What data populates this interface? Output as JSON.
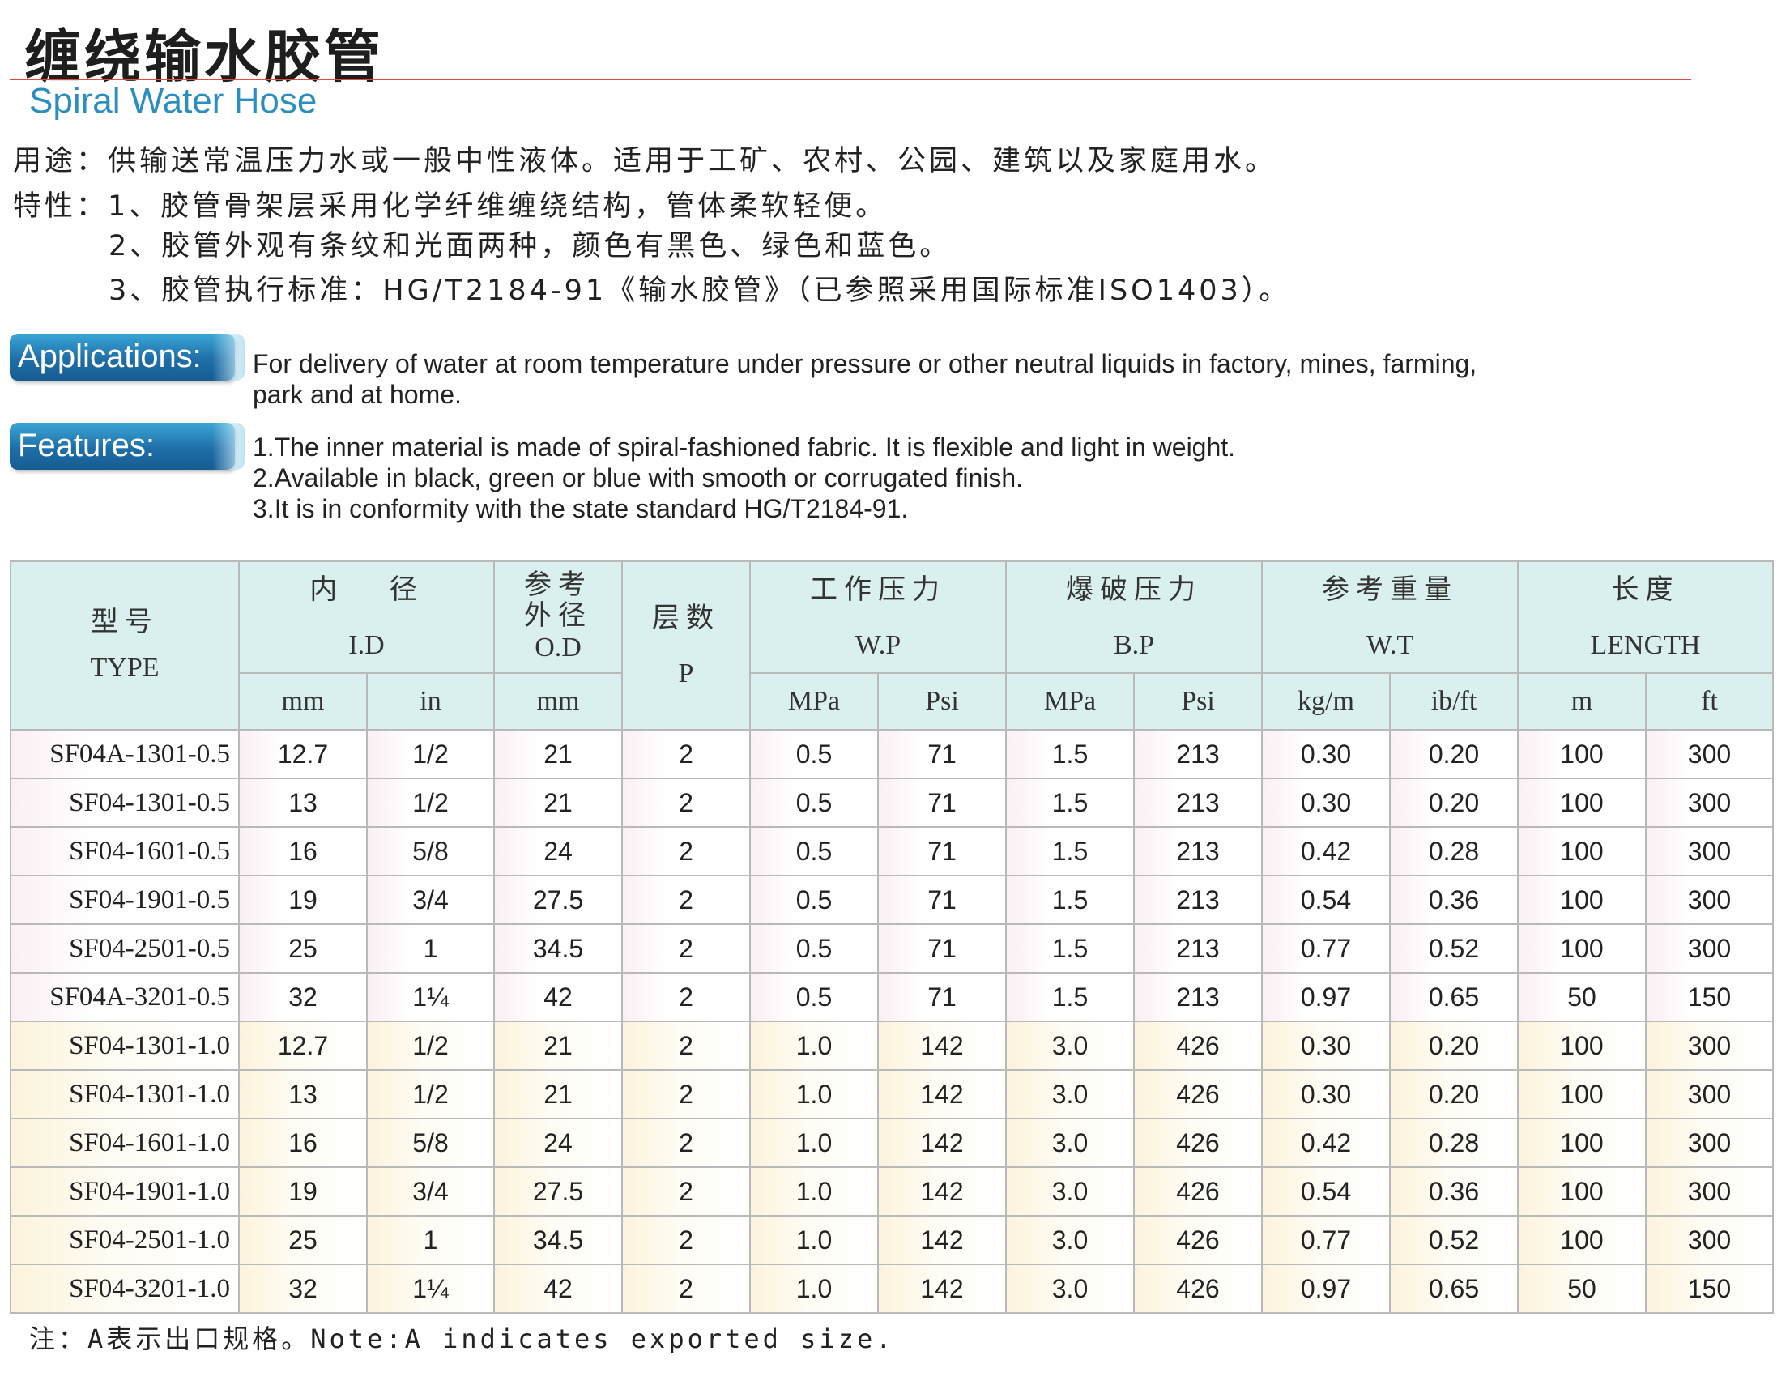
{
  "title_cn": "缠绕输水胶管",
  "title_en": "Spiral Water Hose",
  "usage_line": "用途：供输送常温压力水或一般中性液体。适用于工矿、农村、公园、建筑以及家庭用水。",
  "features_cn": [
    "特性：1、胶管骨架层采用化学纤维缠绕结构，管体柔软轻便。",
    "2、胶管外观有条纹和光面两种，颜色有黑色、绿色和蓝色。",
    "3、胶管执行标准：HG/T2184-91《输水胶管》（已参照采用国际标准ISO1403）。"
  ],
  "applications": {
    "label": "Applications:",
    "lines": [
      "For delivery of water at room temperature under pressure or other neutral liquids in factory, mines, farming,",
      "park and at home."
    ]
  },
  "features_en": {
    "label": "Features:",
    "lines": [
      "1.The inner material is made of spiral-fashioned fabric. It is flexible and light in weight.",
      "2.Available in black, green or blue with smooth or corrugated finish.",
      "3.It is in conformity with the state standard HG/T2184-91."
    ]
  },
  "table": {
    "headers": {
      "type_cn": "型号",
      "type_en": "TYPE",
      "id_cn": "内 径",
      "id_en": "I.D",
      "od_cn1": "参考",
      "od_cn2": "外径",
      "od_en": "O.D",
      "p_cn": "层数",
      "p_en": "P",
      "wp_cn": "工作压力",
      "wp_en": "W.P",
      "bp_cn": "爆破压力",
      "bp_en": "B.P",
      "wt_cn": "参考重量",
      "wt_en": "W.T",
      "len_cn": "长度",
      "len_en": "LENGTH"
    },
    "units": [
      "mm",
      "in",
      "mm",
      "MPa",
      "Psi",
      "MPa",
      "Psi",
      "kg/m",
      "ib/ft",
      "m",
      "ft"
    ],
    "rows": [
      [
        "SF04A-1301-0.5",
        "12.7",
        "1/2",
        "21",
        "2",
        "0.5",
        "71",
        "1.5",
        "213",
        "0.30",
        "0.20",
        "100",
        "300"
      ],
      [
        "SF04-1301-0.5",
        "13",
        "1/2",
        "21",
        "2",
        "0.5",
        "71",
        "1.5",
        "213",
        "0.30",
        "0.20",
        "100",
        "300"
      ],
      [
        "SF04-1601-0.5",
        "16",
        "5/8",
        "24",
        "2",
        "0.5",
        "71",
        "1.5",
        "213",
        "0.42",
        "0.28",
        "100",
        "300"
      ],
      [
        "SF04-1901-0.5",
        "19",
        "3/4",
        "27.5",
        "2",
        "0.5",
        "71",
        "1.5",
        "213",
        "0.54",
        "0.36",
        "100",
        "300"
      ],
      [
        "SF04-2501-0.5",
        "25",
        "1",
        "34.5",
        "2",
        "0.5",
        "71",
        "1.5",
        "213",
        "0.77",
        "0.52",
        "100",
        "300"
      ],
      [
        "SF04A-3201-0.5",
        "32",
        "1¼",
        "42",
        "2",
        "0.5",
        "71",
        "1.5",
        "213",
        "0.97",
        "0.65",
        "50",
        "150"
      ],
      [
        "SF04-1301-1.0",
        "12.7",
        "1/2",
        "21",
        "2",
        "1.0",
        "142",
        "3.0",
        "426",
        "0.30",
        "0.20",
        "100",
        "300"
      ],
      [
        "SF04-1301-1.0",
        "13",
        "1/2",
        "21",
        "2",
        "1.0",
        "142",
        "3.0",
        "426",
        "0.30",
        "0.20",
        "100",
        "300"
      ],
      [
        "SF04-1601-1.0",
        "16",
        "5/8",
        "24",
        "2",
        "1.0",
        "142",
        "3.0",
        "426",
        "0.42",
        "0.28",
        "100",
        "300"
      ],
      [
        "SF04-1901-1.0",
        "19",
        "3/4",
        "27.5",
        "2",
        "1.0",
        "142",
        "3.0",
        "426",
        "0.54",
        "0.36",
        "100",
        "300"
      ],
      [
        "SF04-2501-1.0",
        "25",
        "1",
        "34.5",
        "2",
        "1.0",
        "142",
        "3.0",
        "426",
        "0.77",
        "0.52",
        "100",
        "300"
      ],
      [
        "SF04-3201-1.0",
        "32",
        "1¼",
        "42",
        "2",
        "1.0",
        "142",
        "3.0",
        "426",
        "0.97",
        "0.65",
        "50",
        "150"
      ]
    ]
  },
  "note": "注：A表示出口规格。Note:A indicates exported size."
}
